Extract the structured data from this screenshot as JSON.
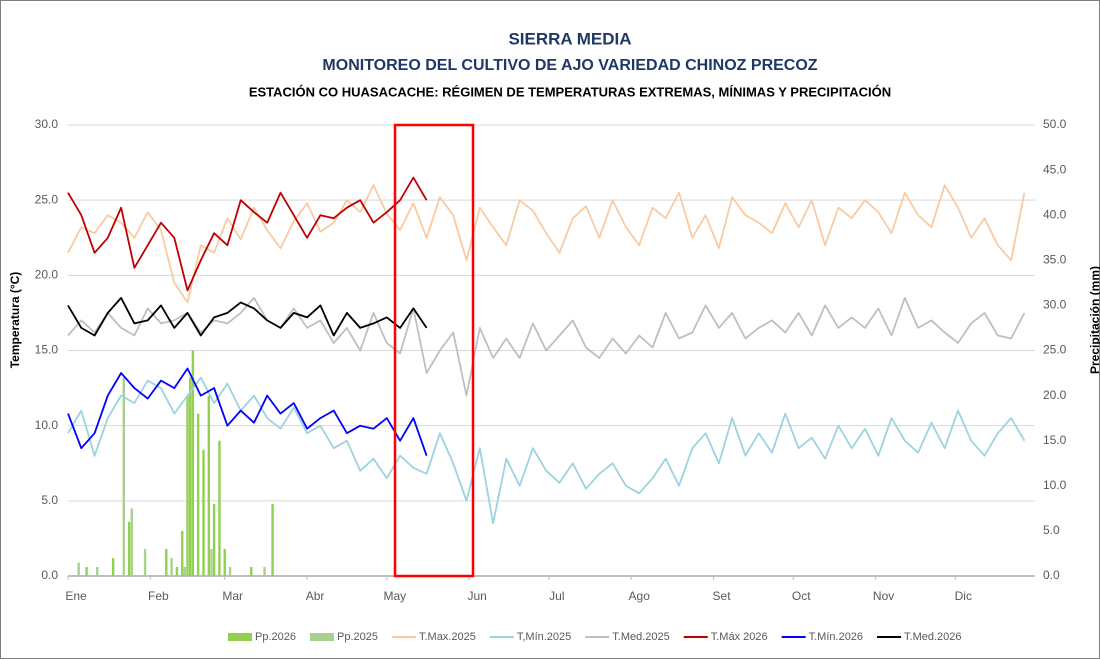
{
  "chart_data": {
    "type": "line",
    "title": "SIERRA MEDIA",
    "subtitle": "MONITOREO DEL CULTIVO DE AJO VARIEDAD CHINOZ PRECOZ",
    "subtitle2": "ESTACIÓN CO HUASACACHE: RÉGIMEN DE TEMPERATURAS EXTREMAS, MÍNIMAS Y PRECIPITACIÓN",
    "y_label": "Temperatura (°C)",
    "y2_label": "Precipitación (mm)",
    "xlim": [
      1,
      365
    ],
    "xticks": [
      {
        "value": 1,
        "label": "Ene"
      },
      {
        "value": 32,
        "label": "Feb"
      },
      {
        "value": 60,
        "label": "Mar"
      },
      {
        "value": 91,
        "label": "Abr"
      },
      {
        "value": 121,
        "label": "May"
      },
      {
        "value": 152,
        "label": "Jun"
      },
      {
        "value": 182,
        "label": "Jul"
      },
      {
        "value": 213,
        "label": "Ago"
      },
      {
        "value": 244,
        "label": "Set"
      },
      {
        "value": 274,
        "label": "Oct"
      },
      {
        "value": 305,
        "label": "Nov"
      },
      {
        "value": 335,
        "label": "Dic"
      }
    ],
    "ylim": [
      0,
      30
    ],
    "yticks": [
      {
        "value": 0,
        "label": "0.0"
      },
      {
        "value": 5,
        "label": "5.0"
      },
      {
        "value": 10,
        "label": "10.0"
      },
      {
        "value": 15,
        "label": "15.0"
      },
      {
        "value": 20,
        "label": "20.0"
      },
      {
        "value": 25,
        "label": "25.0"
      },
      {
        "value": 30,
        "label": "30.0"
      }
    ],
    "y2lim": [
      0,
      50
    ],
    "y2ticks": [
      {
        "value": 0,
        "label": "0.0"
      },
      {
        "value": 5,
        "label": "5.0"
      },
      {
        "value": 10,
        "label": "10.0"
      },
      {
        "value": 15,
        "label": "15.0"
      },
      {
        "value": 20,
        "label": "20.0"
      },
      {
        "value": 25,
        "label": "25.0"
      },
      {
        "value": 30,
        "label": "30.0"
      },
      {
        "value": 35,
        "label": "35.0"
      },
      {
        "value": 40,
        "label": "40.0"
      },
      {
        "value": 45,
        "label": "45.0"
      },
      {
        "value": 50,
        "label": "50.0"
      }
    ],
    "grid": true,
    "legend": "bottom",
    "x": [
      1,
      6,
      11,
      16,
      21,
      26,
      31,
      36,
      41,
      46,
      51,
      56,
      61,
      66,
      71,
      76,
      81,
      86,
      91,
      96,
      101,
      106,
      111,
      116,
      121,
      126,
      131,
      136,
      141,
      146,
      151,
      156,
      161,
      166,
      171,
      176,
      181,
      186,
      191,
      196,
      201,
      206,
      211,
      216,
      221,
      226,
      231,
      236,
      241,
      246,
      251,
      256,
      261,
      266,
      271,
      276,
      281,
      286,
      291,
      296,
      301,
      306,
      311,
      316,
      321,
      326,
      331,
      336,
      341,
      346,
      351,
      356,
      361
    ],
    "series": [
      {
        "name": "Pp.2026",
        "color": "#92d050",
        "type": "bar",
        "axis": "y2",
        "x": [
          8,
          18,
          24,
          38,
          42,
          44,
          46,
          47,
          48,
          50,
          52,
          54,
          56,
          58,
          60,
          70,
          78
        ],
        "values": [
          1,
          2,
          6,
          3,
          1,
          5,
          20,
          22,
          25,
          18,
          14,
          20,
          8,
          15,
          3,
          1,
          8
        ]
      },
      {
        "name": "Pp.2025",
        "color": "#a9d18e",
        "type": "bar",
        "axis": "y2",
        "x": [
          5,
          12,
          22,
          25,
          30,
          40,
          45,
          55,
          62,
          75
        ],
        "values": [
          1.5,
          1,
          22,
          7.5,
          3,
          2,
          1,
          3,
          1,
          1
        ]
      },
      {
        "name": "T.Max.2025",
        "color": "#f8cba4",
        "type": "line",
        "values": [
          21.5,
          23.2,
          22.8,
          24.0,
          23.5,
          22.5,
          24.2,
          23.0,
          19.5,
          18.2,
          22.0,
          21.5,
          23.8,
          22.4,
          24.5,
          23.0,
          21.8,
          23.6,
          24.8,
          22.9,
          23.5,
          25.0,
          24.2,
          26.0,
          24.1,
          23.0,
          24.8,
          22.5,
          25.2,
          24.0,
          21.0,
          24.5,
          23.2,
          22.0,
          25.0,
          24.3,
          22.8,
          21.5,
          23.8,
          24.6,
          22.5,
          25.0,
          23.2,
          22.0,
          24.5,
          23.8,
          25.5,
          22.5,
          24.0,
          21.8,
          25.2,
          24.0,
          23.5,
          22.8,
          24.8,
          23.2,
          25.0,
          22.0,
          24.5,
          23.8,
          25.0,
          24.2,
          22.8,
          25.5,
          24.0,
          23.2,
          26.0,
          24.5,
          22.5,
          23.8,
          22.0,
          21.0,
          25.5
        ]
      },
      {
        "name": "T,Mín.2025",
        "color": "#9dd3df",
        "type": "line",
        "values": [
          9.5,
          11.0,
          8.0,
          10.5,
          12.0,
          11.5,
          13.0,
          12.5,
          10.8,
          12.0,
          13.2,
          11.5,
          12.8,
          11.0,
          12.0,
          10.5,
          9.8,
          11.2,
          9.5,
          10.0,
          8.5,
          9.0,
          7.0,
          7.8,
          6.5,
          8.0,
          7.2,
          6.8,
          9.5,
          7.5,
          5.0,
          8.5,
          3.5,
          7.8,
          6.0,
          8.5,
          7.0,
          6.2,
          7.5,
          5.8,
          6.8,
          7.5,
          6.0,
          5.5,
          6.5,
          7.8,
          6.0,
          8.5,
          9.5,
          7.5,
          10.5,
          8.0,
          9.5,
          8.2,
          10.8,
          8.5,
          9.2,
          7.8,
          10.0,
          8.5,
          9.8,
          8.0,
          10.5,
          9.0,
          8.2,
          10.2,
          8.5,
          11.0,
          9.0,
          8.0,
          9.5,
          10.5,
          9.0
        ]
      },
      {
        "name": "T.Med.2025",
        "color": "#bfbfbf",
        "type": "line",
        "values": [
          16.0,
          17.0,
          16.2,
          17.5,
          16.5,
          16.0,
          17.8,
          16.8,
          17.0,
          17.5,
          16.2,
          17.0,
          16.8,
          17.5,
          18.5,
          17.0,
          16.5,
          17.8,
          16.5,
          17.0,
          15.5,
          16.5,
          15.0,
          17.5,
          15.5,
          14.8,
          17.8,
          13.5,
          15.0,
          16.2,
          12.0,
          16.5,
          14.5,
          15.8,
          14.5,
          16.8,
          15.0,
          16.0,
          17.0,
          15.2,
          14.5,
          15.8,
          14.8,
          16.0,
          15.2,
          17.5,
          15.8,
          16.2,
          18.0,
          16.5,
          17.5,
          15.8,
          16.5,
          17.0,
          16.2,
          17.5,
          16.0,
          18.0,
          16.5,
          17.2,
          16.5,
          17.8,
          16.0,
          18.5,
          16.5,
          17.0,
          16.2,
          15.5,
          16.8,
          17.5,
          16.0,
          15.8,
          17.5
        ]
      },
      {
        "name": "T.Máx 2026",
        "color": "#c00000",
        "type": "line",
        "x": [
          1,
          6,
          11,
          16,
          21,
          26,
          31,
          36,
          41,
          46,
          51,
          56,
          61,
          66,
          71,
          76,
          81,
          86,
          91,
          96,
          101,
          106,
          111,
          116,
          121,
          126,
          131,
          136
        ],
        "values": [
          25.5,
          24.0,
          21.5,
          22.5,
          24.5,
          20.5,
          22.0,
          23.5,
          22.5,
          19.0,
          21.0,
          22.8,
          22.0,
          25.0,
          24.2,
          23.5,
          25.5,
          24.0,
          22.5,
          24.0,
          23.8,
          24.5,
          25.0,
          23.5,
          24.2,
          25.0,
          26.5,
          25.0
        ]
      },
      {
        "name": "T.Mín.2026",
        "color": "#0000ff",
        "type": "line",
        "x": [
          1,
          6,
          11,
          16,
          21,
          26,
          31,
          36,
          41,
          46,
          51,
          56,
          61,
          66,
          71,
          76,
          81,
          86,
          91,
          96,
          101,
          106,
          111,
          116,
          121,
          126,
          131,
          136
        ],
        "values": [
          10.8,
          8.5,
          9.5,
          12.0,
          13.5,
          12.5,
          11.8,
          13.0,
          12.5,
          13.8,
          12.0,
          12.5,
          10.0,
          11.0,
          10.2,
          12.0,
          10.8,
          11.5,
          9.8,
          10.5,
          11.0,
          9.5,
          10.0,
          9.8,
          10.5,
          9.0,
          10.5,
          8.0
        ]
      },
      {
        "name": "T.Med.2026",
        "color": "#000000",
        "type": "line",
        "x": [
          1,
          6,
          11,
          16,
          21,
          26,
          31,
          36,
          41,
          46,
          51,
          56,
          61,
          66,
          71,
          76,
          81,
          86,
          91,
          96,
          101,
          106,
          111,
          116,
          121,
          126,
          131,
          136
        ],
        "values": [
          18.0,
          16.5,
          16.0,
          17.5,
          18.5,
          16.8,
          17.0,
          18.0,
          16.5,
          17.5,
          16.0,
          17.2,
          17.5,
          18.2,
          17.8,
          17.0,
          16.5,
          17.5,
          17.2,
          18.0,
          16.0,
          17.5,
          16.5,
          16.8,
          17.2,
          16.5,
          17.8,
          16.5
        ]
      }
    ]
  }
}
